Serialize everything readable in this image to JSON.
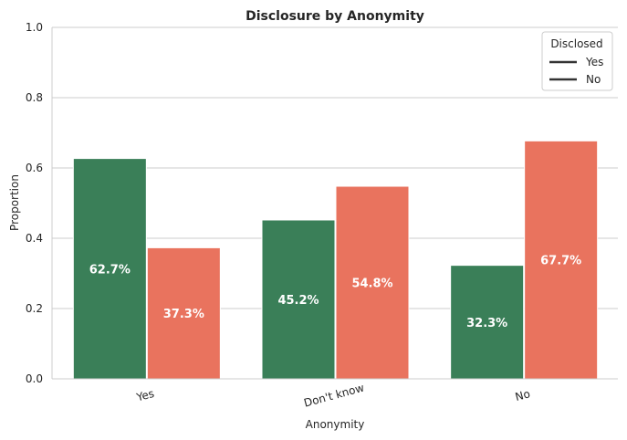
{
  "chart_data": {
    "type": "bar",
    "title": "Disclosure by Anonymity",
    "xlabel": "Anonymity",
    "ylabel": "Proportion",
    "categories": [
      "Yes",
      "Don't know",
      "No"
    ],
    "ylim": [
      0,
      1
    ],
    "yticks": [
      0.0,
      0.2,
      0.4,
      0.6,
      0.8,
      1.0
    ],
    "ytick_labels": [
      "0.0",
      "0.2",
      "0.4",
      "0.6",
      "0.8",
      "1.0"
    ],
    "grid": "horizontal",
    "legend": {
      "title": "Disclosed",
      "position": "top-right",
      "entries": [
        "Yes",
        "No"
      ]
    },
    "series": [
      {
        "name": "Yes",
        "color": "#3a7f58",
        "values": [
          0.627,
          0.452,
          0.323
        ],
        "labels": [
          "62.7%",
          "45.2%",
          "32.3%"
        ]
      },
      {
        "name": "No",
        "color": "#e9735e",
        "values": [
          0.373,
          0.548,
          0.677
        ],
        "labels": [
          "37.3%",
          "54.8%",
          "67.7%"
        ]
      }
    ]
  }
}
